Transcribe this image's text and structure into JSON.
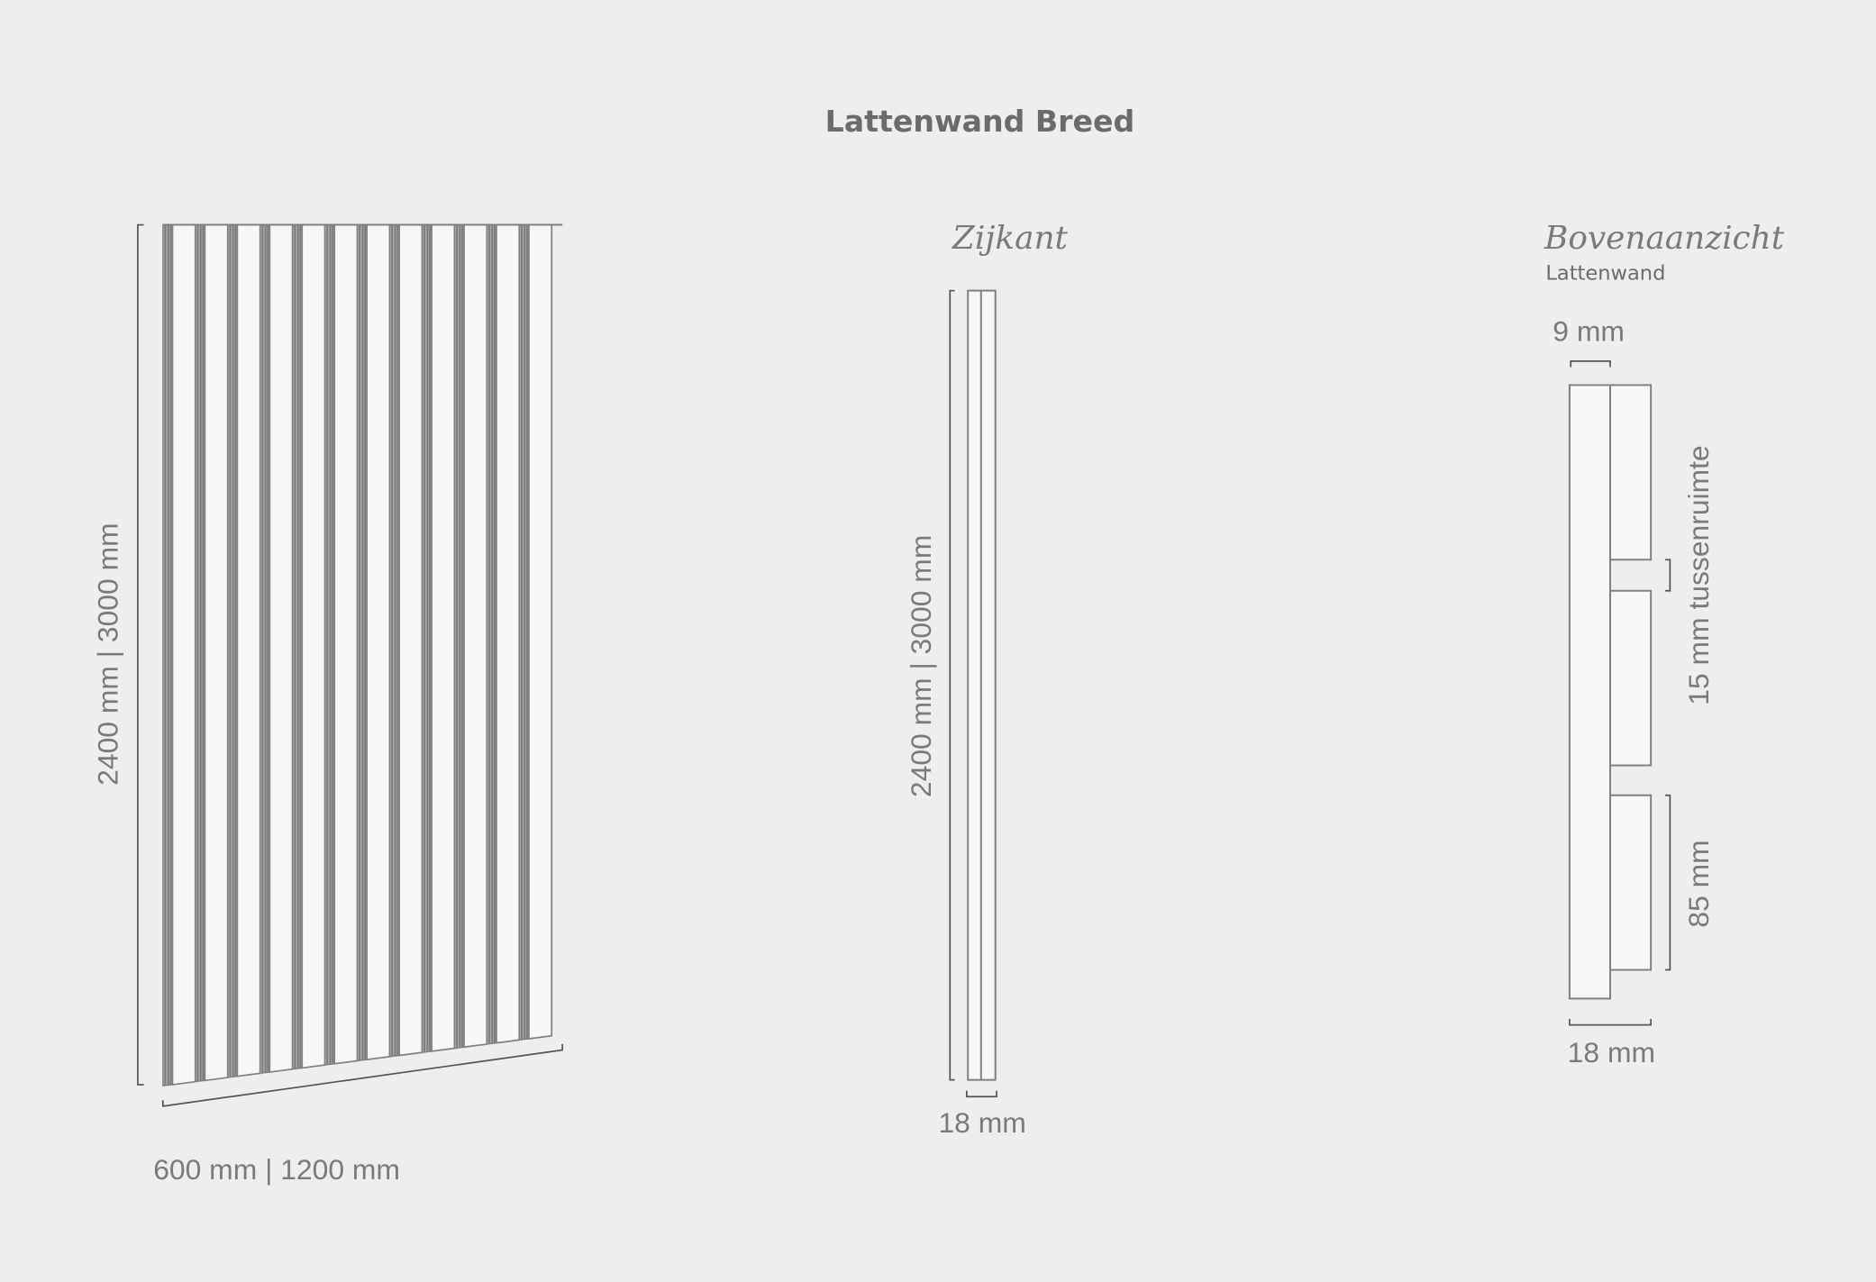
{
  "title": "Lattenwand Breed",
  "front_view": {
    "height_label": "2400 mm | 3000 mm",
    "width_label": "600 mm | 1200 mm",
    "slat_count": 12
  },
  "side_view": {
    "heading": "Zijkant",
    "height_label": "2400 mm | 3000 mm",
    "thickness_label": "18 mm"
  },
  "top_view": {
    "heading": "Bovenaanzicht",
    "subheading": "Lattenwand",
    "backing_label": "9 mm",
    "gap_label": "15 mm tussenruimte",
    "slat_width_label": "85 mm",
    "total_thickness_label": "18 mm"
  },
  "colors": {
    "background": "#eeeeee",
    "stroke": "#808080",
    "fill": "#f7f7f7",
    "text": "#7a7a7a"
  }
}
